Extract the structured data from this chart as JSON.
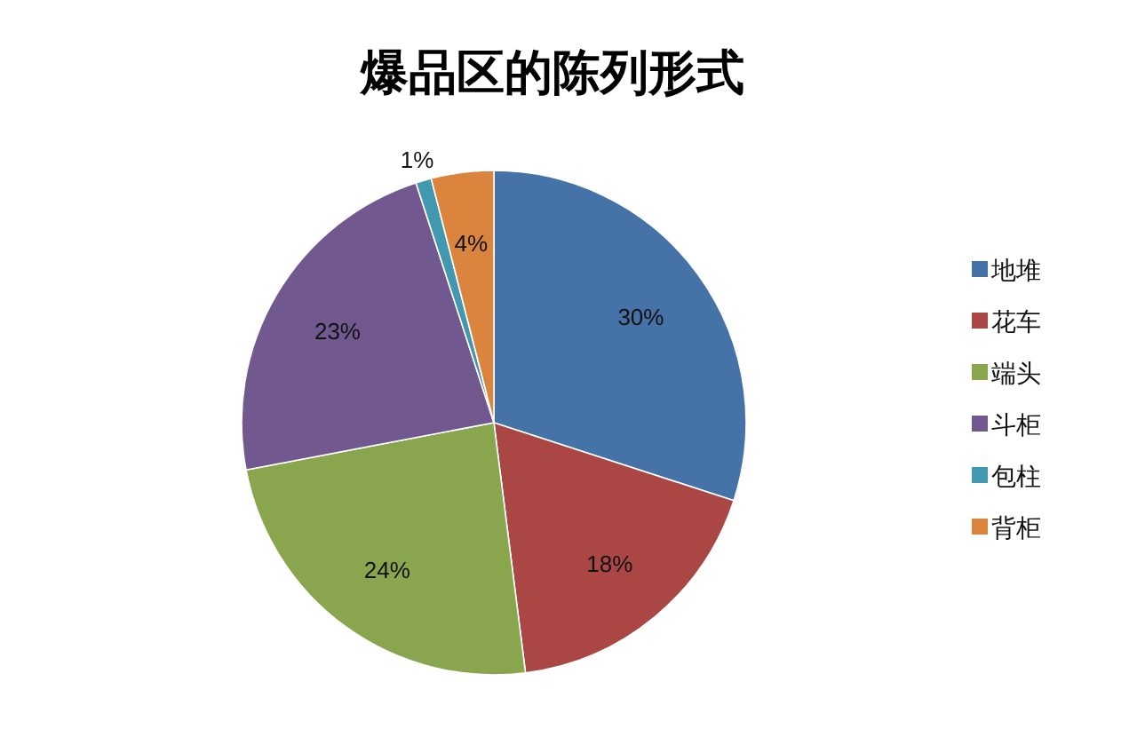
{
  "chart_data": {
    "type": "pie",
    "title": "爆品区的陈列形式",
    "categories": [
      "地堆",
      "花车",
      "端头",
      "斗柜",
      "包柱",
      "背柜"
    ],
    "values": [
      30,
      18,
      24,
      23,
      1,
      4
    ],
    "value_labels": [
      "30%",
      "18%",
      "24%",
      "23%",
      "1%",
      "4%"
    ],
    "colors": [
      "#4573a7",
      "#aa4644",
      "#89a54e",
      "#71588f",
      "#4298af",
      "#db843d"
    ],
    "legend": "right"
  }
}
